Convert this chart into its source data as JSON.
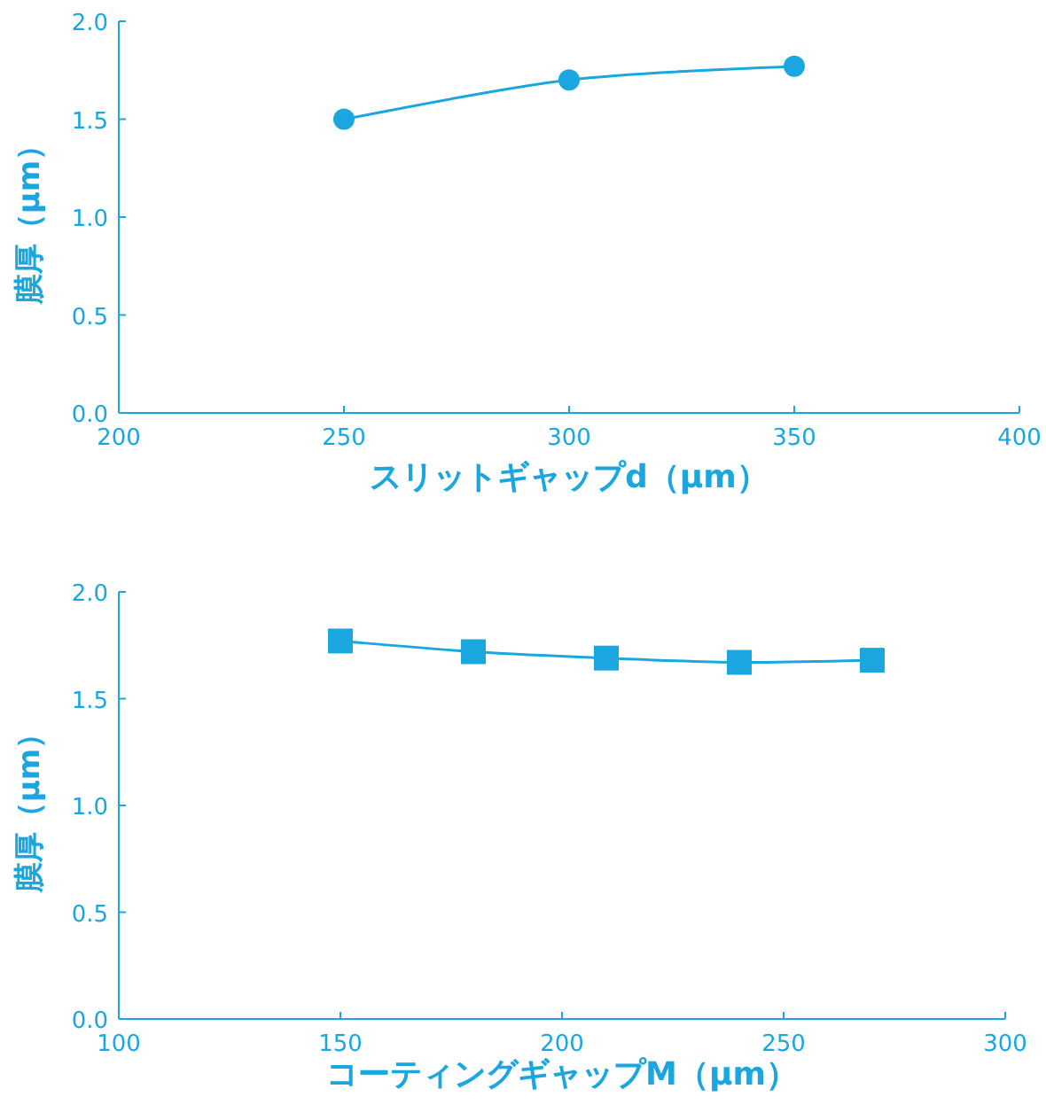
{
  "chart_data": [
    {
      "type": "line",
      "xlabel": "スリットギャップd（μm）",
      "ylabel": "膜厚（μm）",
      "marker": "circle",
      "grid": false,
      "series": [
        {
          "color": "#1aa7e0",
          "x": [
            250,
            300,
            350
          ],
          "values": [
            1.5,
            1.7,
            1.77
          ]
        }
      ],
      "xlim": [
        200,
        400
      ],
      "xticks": [
        200,
        250,
        300,
        350,
        400
      ],
      "ylim": [
        0,
        2
      ],
      "yticks": [
        {
          "value": 0,
          "label": "0.0"
        },
        {
          "value": 0.5,
          "label": "0.5"
        },
        {
          "value": 1,
          "label": "1.0"
        },
        {
          "value": 1.5,
          "label": "1.5"
        },
        {
          "value": 2,
          "label": "2.0"
        }
      ]
    },
    {
      "type": "line",
      "xlabel": "コーティングギャップM（μm）",
      "ylabel": "膜厚（μm）",
      "marker": "square",
      "grid": false,
      "series": [
        {
          "color": "#1aa7e0",
          "x": [
            150,
            180,
            210,
            240,
            270
          ],
          "values": [
            1.77,
            1.72,
            1.69,
            1.67,
            1.68
          ]
        }
      ],
      "xlim": [
        100,
        300
      ],
      "xticks": [
        100,
        150,
        200,
        250,
        300
      ],
      "ylim": [
        0,
        2
      ],
      "yticks": [
        {
          "value": 0,
          "label": "0.0"
        },
        {
          "value": 0.5,
          "label": "0.5"
        },
        {
          "value": 1,
          "label": "1.0"
        },
        {
          "value": 1.5,
          "label": "1.5"
        },
        {
          "value": 2,
          "label": "2.0"
        }
      ]
    }
  ]
}
